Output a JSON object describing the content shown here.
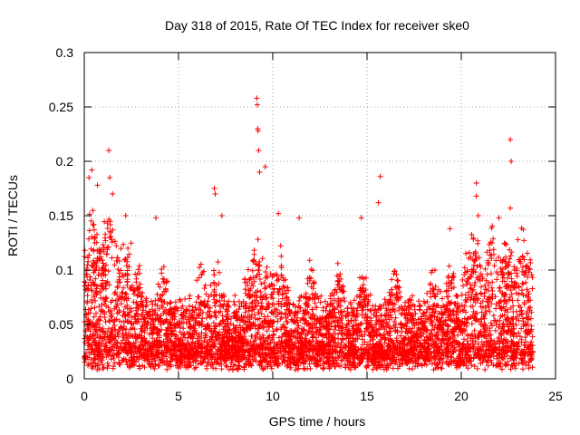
{
  "chart_data": {
    "type": "scatter",
    "title": "Day 318 of 2015, Rate Of TEC Index for receiver ske0",
    "xlabel": "GPS time / hours",
    "ylabel": "ROTI / TECUs",
    "xlim": [
      0,
      25
    ],
    "ylim": [
      0,
      0.3
    ],
    "xticks": [
      "0",
      "5",
      "10",
      "15",
      "20",
      "25"
    ],
    "yticks": [
      "0",
      "0.05",
      "0.1",
      "0.15",
      "0.2",
      "0.25",
      "0.3"
    ],
    "grid": true,
    "marker": "plus",
    "marker_color": "#ff0000",
    "outliers": [
      {
        "x": 0.25,
        "y": 0.185
      },
      {
        "x": 0.4,
        "y": 0.192
      },
      {
        "x": 0.7,
        "y": 0.178
      },
      {
        "x": 1.3,
        "y": 0.21
      },
      {
        "x": 1.35,
        "y": 0.185
      },
      {
        "x": 1.5,
        "y": 0.17
      },
      {
        "x": 2.2,
        "y": 0.15
      },
      {
        "x": 3.8,
        "y": 0.148
      },
      {
        "x": 6.9,
        "y": 0.175
      },
      {
        "x": 6.95,
        "y": 0.17
      },
      {
        "x": 7.3,
        "y": 0.15
      },
      {
        "x": 9.15,
        "y": 0.258
      },
      {
        "x": 9.18,
        "y": 0.252
      },
      {
        "x": 9.2,
        "y": 0.23
      },
      {
        "x": 9.22,
        "y": 0.228
      },
      {
        "x": 9.25,
        "y": 0.21
      },
      {
        "x": 9.3,
        "y": 0.19
      },
      {
        "x": 9.6,
        "y": 0.195
      },
      {
        "x": 10.3,
        "y": 0.152
      },
      {
        "x": 11.4,
        "y": 0.148
      },
      {
        "x": 14.7,
        "y": 0.148
      },
      {
        "x": 15.7,
        "y": 0.186
      },
      {
        "x": 15.6,
        "y": 0.162
      },
      {
        "x": 19.4,
        "y": 0.138
      },
      {
        "x": 20.8,
        "y": 0.18
      },
      {
        "x": 20.8,
        "y": 0.168
      },
      {
        "x": 20.9,
        "y": 0.15
      },
      {
        "x": 22.0,
        "y": 0.148
      },
      {
        "x": 22.6,
        "y": 0.22
      },
      {
        "x": 22.65,
        "y": 0.2
      },
      {
        "x": 22.6,
        "y": 0.157
      },
      {
        "x": 23.0,
        "y": 0.128
      }
    ]
  }
}
